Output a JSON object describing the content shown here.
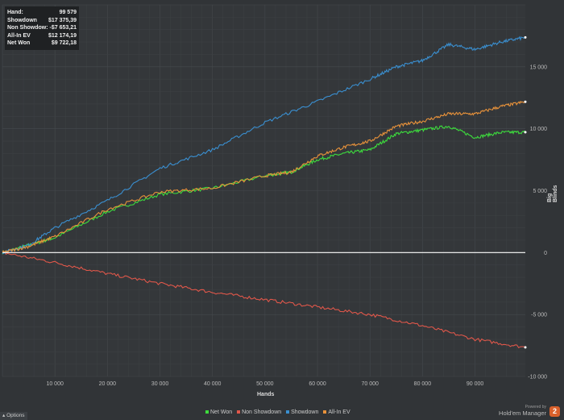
{
  "tooltip": {
    "rows": [
      {
        "label": "Hand:",
        "value": "99 579"
      },
      {
        "label": "Showdown",
        "value": "$17 375,39"
      },
      {
        "label": "Non Showdow:",
        "value": "-$7 653,21"
      },
      {
        "label": "All-In EV",
        "value": "$12 174,19"
      },
      {
        "label": "Net Won",
        "value": "$9 722,18"
      }
    ]
  },
  "branding": {
    "small": "Powered by",
    "main": "Hold'em Manager",
    "logo": "2"
  },
  "options_label": "Options",
  "chart_data": {
    "type": "line",
    "title": "",
    "xlabel": "Hands",
    "ylabel": "Big Blinds",
    "xlim": [
      0,
      99579
    ],
    "ylim": [
      -10000,
      20000
    ],
    "grid": true,
    "legend": "bottom-center",
    "xticks": [
      10000,
      20000,
      30000,
      40000,
      50000,
      60000,
      70000,
      80000,
      90000
    ],
    "xtick_labels": [
      "10 000",
      "20 000",
      "30 000",
      "40 000",
      "50 000",
      "60 000",
      "70 000",
      "80 000",
      "90 000"
    ],
    "yticks": [
      -10000,
      -5000,
      0,
      5000,
      10000,
      15000
    ],
    "ytick_labels": [
      "-10 000",
      "-5 000",
      "0",
      "5 000",
      "10 000",
      "15 000"
    ],
    "series": [
      {
        "name": "Net Won",
        "color": "#3ddc3d",
        "x": [
          0,
          5000,
          10000,
          20000,
          30000,
          40000,
          50000,
          55000,
          60000,
          65000,
          70000,
          75000,
          80000,
          85000,
          90000,
          95000,
          99579
        ],
        "y": [
          0,
          600,
          1200,
          3300,
          4700,
          5200,
          6200,
          6500,
          7500,
          8000,
          8300,
          9600,
          9900,
          10200,
          9300,
          9700,
          9722
        ]
      },
      {
        "name": "Non Showdown",
        "color": "#e0574a",
        "x": [
          0,
          10000,
          20000,
          30000,
          40000,
          50000,
          60000,
          70000,
          80000,
          90000,
          99579
        ],
        "y": [
          0,
          -800,
          -1700,
          -2500,
          -3200,
          -3800,
          -4400,
          -5000,
          -5900,
          -7000,
          -7653
        ]
      },
      {
        "name": "Showdown",
        "color": "#3a8fd0",
        "x": [
          0,
          5000,
          10000,
          20000,
          30000,
          40000,
          50000,
          60000,
          70000,
          75000,
          80000,
          85000,
          90000,
          95000,
          99579
        ],
        "y": [
          0,
          600,
          2000,
          4200,
          6800,
          8300,
          10500,
          12200,
          14000,
          15000,
          15500,
          16800,
          16400,
          17000,
          17375
        ]
      },
      {
        "name": "All-In EV",
        "color": "#e8923a",
        "x": [
          0,
          5000,
          10000,
          20000,
          30000,
          40000,
          50000,
          55000,
          60000,
          65000,
          70000,
          75000,
          80000,
          85000,
          90000,
          95000,
          99579
        ],
        "y": [
          0,
          500,
          1300,
          3500,
          4900,
          5200,
          6200,
          6500,
          7800,
          8500,
          9000,
          10200,
          10600,
          11200,
          11200,
          11800,
          12174
        ]
      }
    ]
  }
}
